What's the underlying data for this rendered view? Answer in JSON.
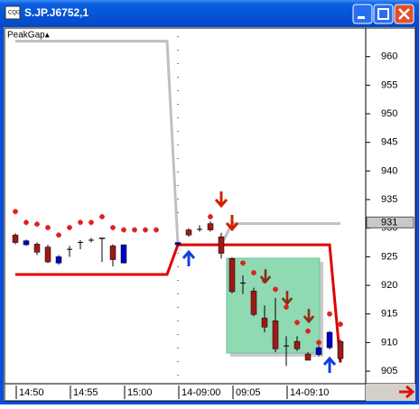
{
  "window": {
    "title": "S.JP.J6752,1"
  },
  "chart_data": {
    "type": "candlestick",
    "indicator_label": "PeakGap▴",
    "categories": [
      "14:50",
      null,
      null,
      null,
      null,
      "14:55",
      null,
      null,
      null,
      null,
      "15:00",
      null,
      null,
      null,
      null,
      "14-09:00",
      null,
      null,
      null,
      null,
      "09:05",
      null,
      null,
      null,
      null,
      "14-09:10",
      null,
      null,
      null,
      null,
      null
    ],
    "open": [
      928.8,
      927.1,
      927.2,
      926.7,
      923.9,
      926.3,
      927.5,
      927.9,
      928.3,
      926.9,
      923.9,
      null,
      null,
      null,
      null,
      927.1,
      929.7,
      929.8,
      930.8,
      928.5,
      924.7,
      920.4,
      919.0,
      914.3,
      913.8,
      909.4,
      910.2,
      908.0,
      907.9,
      909.1,
      910.2
    ],
    "high": [
      929.1,
      928.0,
      927.5,
      927.1,
      925.3,
      926.9,
      927.9,
      928.3,
      928.3,
      927.2,
      927.1,
      null,
      null,
      null,
      null,
      927.5,
      930.0,
      930.5,
      931.2,
      929.2,
      924.9,
      921.7,
      919.6,
      916.5,
      917.8,
      911.1,
      911.1,
      908.3,
      909.4,
      912.0,
      910.5
    ],
    "low": [
      927.2,
      926.9,
      925.3,
      923.9,
      923.6,
      925.0,
      926.3,
      927.5,
      924.1,
      923.3,
      923.9,
      null,
      null,
      null,
      null,
      926.9,
      928.5,
      929.4,
      929.4,
      924.7,
      918.6,
      918.5,
      914.6,
      911.8,
      908.3,
      905.9,
      908.5,
      906.9,
      907.6,
      908.8,
      906.6
    ],
    "close": [
      927.5,
      927.8,
      925.8,
      924.1,
      925.0,
      926.3,
      927.5,
      927.9,
      928.2,
      924.5,
      927.1,
      null,
      null,
      null,
      null,
      927.5,
      928.8,
      929.8,
      929.7,
      925.6,
      918.9,
      920.4,
      914.9,
      912.7,
      908.9,
      909.4,
      908.9,
      906.9,
      909.1,
      911.8,
      907.2
    ],
    "up_color": "#0000c8",
    "down_color": "#a01818",
    "series": [
      {
        "kind": "line",
        "color": "#c0c0c0",
        "values": [
          962.7,
          962.7,
          962.7,
          962.7,
          962.7,
          962.7,
          962.7,
          962.7,
          962.7,
          962.7,
          962.7,
          962.7,
          962.7,
          962.7,
          962.7,
          927.1,
          927.1,
          927.1,
          927.1,
          927.1,
          930.8,
          930.8,
          930.8,
          930.8,
          930.8,
          930.8,
          930.8,
          930.8,
          930.8,
          930.8,
          930.8
        ]
      },
      {
        "kind": "line",
        "color": "#e00000",
        "values": [
          921.9,
          921.9,
          921.9,
          921.9,
          921.9,
          921.9,
          921.9,
          921.9,
          921.9,
          921.9,
          921.9,
          921.9,
          921.9,
          921.9,
          921.9,
          927.1,
          927.1,
          927.1,
          927.1,
          927.1,
          927.1,
          927.1,
          927.1,
          927.1,
          927.1,
          927.1,
          927.1,
          927.1,
          927.1,
          927.1,
          906.5
        ]
      },
      {
        "kind": "star",
        "color": "#e02020",
        "values": [
          932.9,
          931.0,
          930.7,
          930.1,
          928.8,
          930.1,
          931.0,
          931.0,
          932.0,
          930.1,
          929.7,
          929.7,
          929.7,
          929.7,
          null,
          null,
          null,
          null,
          932.0,
          null,
          null,
          923.9,
          922.2,
          920.8,
          919.3,
          916.2,
          913.5,
          912.0,
          910.0,
          915.0,
          913.2
        ]
      }
    ],
    "ylim": [
      902.8,
      965.0
    ],
    "yticks": [
      905,
      910,
      915,
      920,
      925,
      930,
      935,
      940,
      945,
      950,
      955,
      960
    ],
    "last_price": 931
  }
}
